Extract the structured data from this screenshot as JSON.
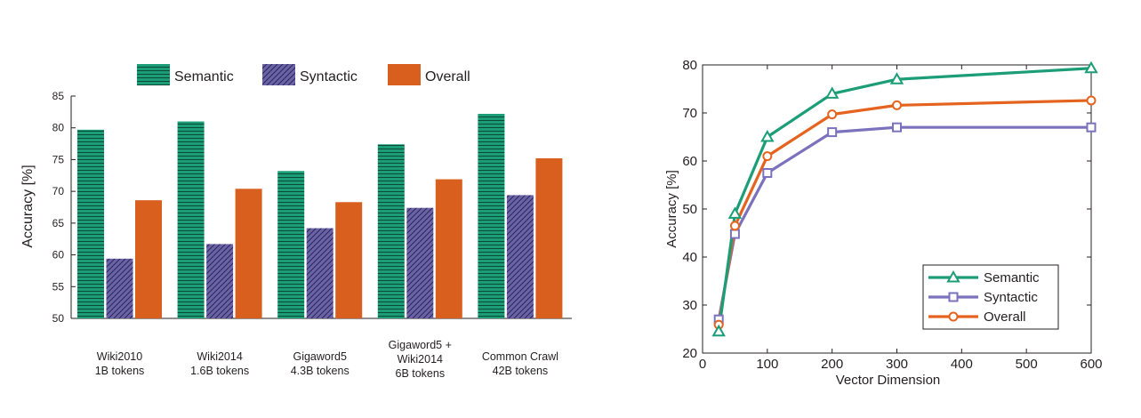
{
  "chart_data": [
    {
      "type": "bar",
      "ylabel": "Accuracy [%]",
      "ylim": [
        50,
        85
      ],
      "yticks": [
        50,
        55,
        60,
        65,
        70,
        75,
        80,
        85
      ],
      "categories": [
        [
          "Wiki2010",
          "1B tokens"
        ],
        [
          "Wiki2014",
          "1.6B tokens"
        ],
        [
          "Gigaword5",
          "4.3B tokens"
        ],
        [
          "Gigaword5 +",
          "Wiki2014",
          "6B tokens"
        ],
        [
          "Common Crawl",
          "42B tokens"
        ]
      ],
      "series": [
        {
          "name": "Semantic",
          "values": [
            79.7,
            81.0,
            73.2,
            77.4,
            82.2
          ],
          "color": "#1b9e77"
        },
        {
          "name": "Syntactic",
          "values": [
            59.4,
            61.7,
            64.2,
            67.4,
            69.4
          ],
          "color": "#6b63a8"
        },
        {
          "name": "Overall",
          "values": [
            68.6,
            70.4,
            68.3,
            71.9,
            75.2
          ],
          "color": "#d95f1e"
        }
      ],
      "legend": "top"
    },
    {
      "type": "line",
      "xlabel": "Vector Dimension",
      "ylabel": "Accuracy [%]",
      "xlim": [
        0,
        600
      ],
      "ylim": [
        20,
        80
      ],
      "xticks": [
        0,
        100,
        200,
        300,
        400,
        500,
        600
      ],
      "yticks": [
        20,
        30,
        40,
        50,
        60,
        70,
        80
      ],
      "x": [
        25,
        50,
        100,
        200,
        300,
        600
      ],
      "series": [
        {
          "name": "Semantic",
          "values": [
            24.5,
            49.0,
            65.0,
            74.0,
            77.0,
            79.3
          ],
          "color": "#1b9e77",
          "marker": "triangle"
        },
        {
          "name": "Syntactic",
          "values": [
            27.0,
            44.8,
            57.5,
            66.0,
            67.0,
            67.0
          ],
          "color": "#7b72bd",
          "marker": "square"
        },
        {
          "name": "Overall",
          "values": [
            25.9,
            46.5,
            61.0,
            69.7,
            71.6,
            72.6
          ],
          "color": "#e4641f",
          "marker": "circle"
        }
      ],
      "legend": "bottom-right",
      "grid": false
    }
  ]
}
